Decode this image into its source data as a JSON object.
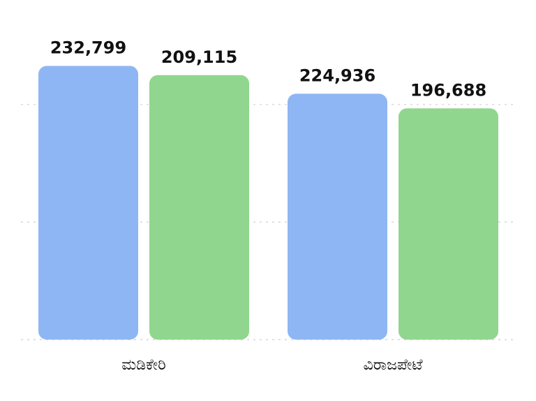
{
  "chart_data": {
    "type": "bar",
    "categories": [
      "ಮಡಿಕೇರಿ",
      "ವಿರಾಜಪೇಟೆ"
    ],
    "series": [
      {
        "values": [
          232799,
          209115
        ],
        "color": "#8fb6f4"
      },
      {
        "values": [
          224936,
          196688
        ],
        "color": "#90d68e"
      }
    ],
    "bar_labels": [
      [
        "232,799",
        "209,115"
      ],
      [
        "224,936",
        "196,688"
      ]
    ],
    "title": "",
    "xlabel": "",
    "ylabel": "",
    "ylim": [
      0,
      250000
    ],
    "grid": true
  }
}
